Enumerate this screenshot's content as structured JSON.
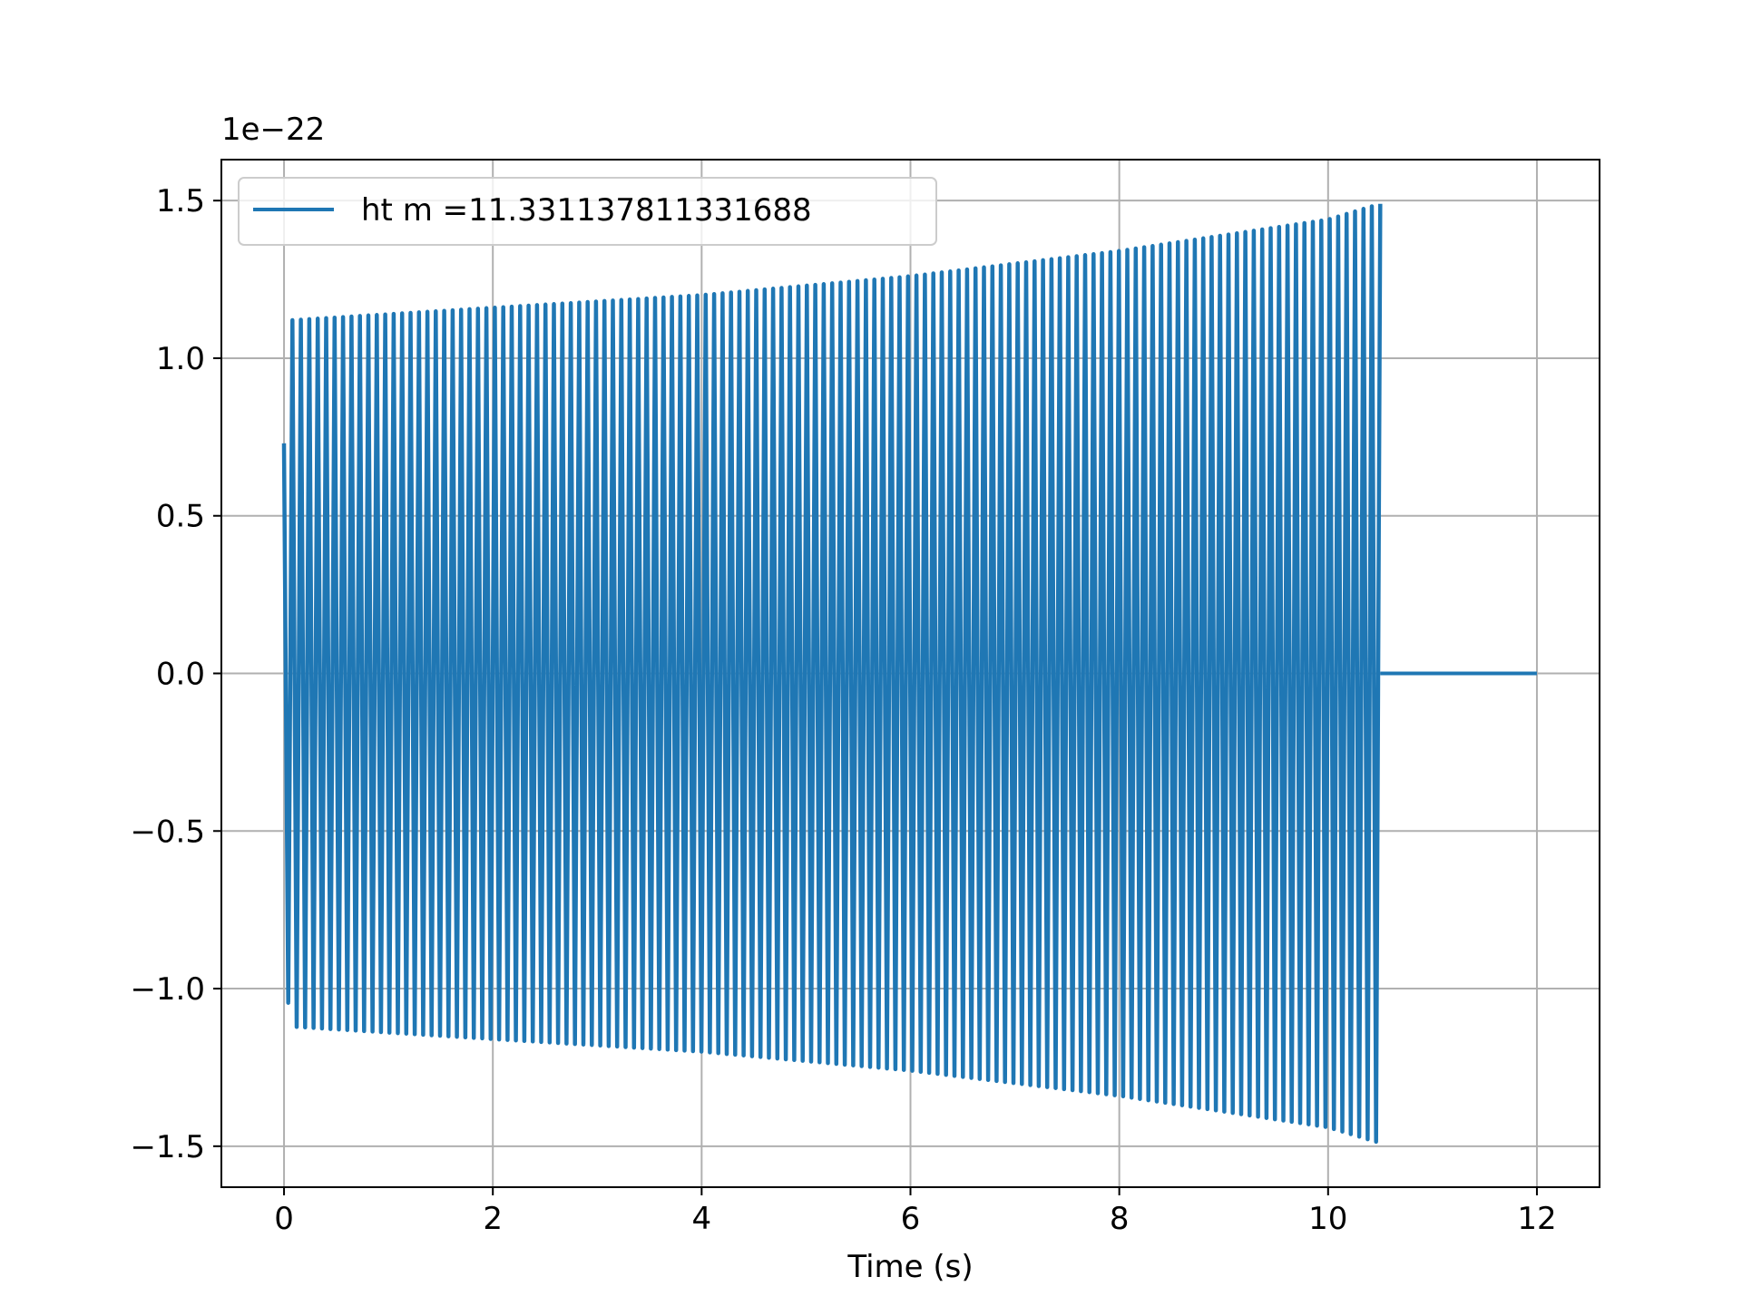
{
  "chart_data": {
    "type": "line",
    "title": "",
    "xlabel": "Time (s)",
    "ylabel": "",
    "offset_label": "1e−22",
    "xlim": [
      -0.6,
      12.6
    ],
    "ylim": [
      -1.63,
      1.63
    ],
    "x_ticks": [
      0,
      2,
      4,
      6,
      8,
      10,
      12
    ],
    "x_tick_labels": [
      "0",
      "2",
      "4",
      "6",
      "8",
      "10",
      "12"
    ],
    "y_ticks": [
      -1.5,
      -1.0,
      -0.5,
      0.0,
      0.5,
      1.0,
      1.5
    ],
    "y_tick_labels": [
      "−1.5",
      "−1.0",
      "−0.5",
      "0.0",
      "0.5",
      "1.0",
      "1.5"
    ],
    "grid": true,
    "legend": {
      "placement": "upper-left"
    },
    "series": [
      {
        "name": "ht m =11.331137811331688",
        "color": "#1f77b4",
        "signal_end_x": 10.5,
        "x_end": 12.0,
        "envelope": [
          {
            "x": 0.0,
            "amplitude": 0.73
          },
          {
            "x": 0.05,
            "amplitude": 1.12
          },
          {
            "x": 2.0,
            "amplitude": 1.16
          },
          {
            "x": 4.0,
            "amplitude": 1.2
          },
          {
            "x": 6.0,
            "amplitude": 1.26
          },
          {
            "x": 8.0,
            "amplitude": 1.34
          },
          {
            "x": 10.0,
            "amplitude": 1.44
          },
          {
            "x": 10.5,
            "amplitude": 1.49
          }
        ],
        "after_signal_value": 0.0
      }
    ]
  }
}
